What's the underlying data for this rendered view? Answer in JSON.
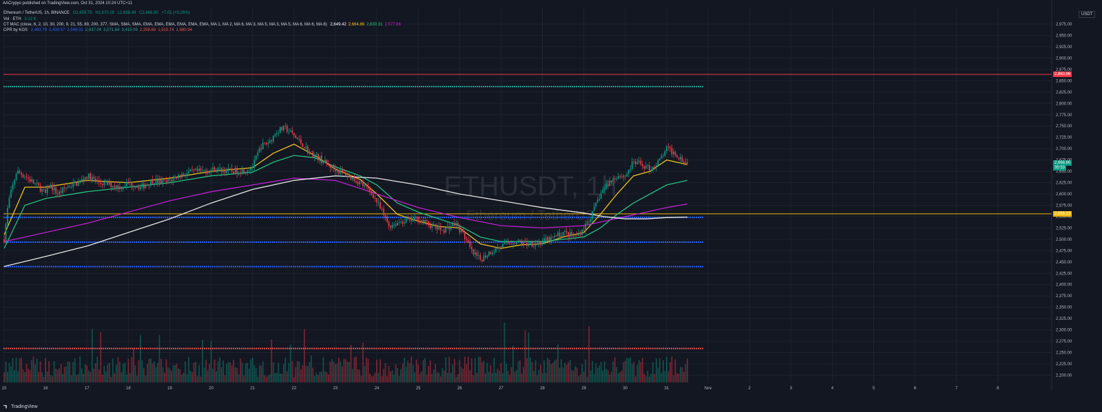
{
  "header": {
    "published": "AACrypyo published on TradingView.com, Oct 31, 2024 10:24 UTC+11",
    "symbol_line": "Ethereum / TetherUS, 1h, BINANCE",
    "ohlc": {
      "o": "O2,659.79",
      "h": "H2,670.28",
      "l": "L2,658.49",
      "c": "C2,668.80",
      "chg": "+7.01 (+0.26%)"
    },
    "vol_label": "Vol · ETH",
    "vol_value": "3.12 K",
    "ma_label": "CT MAC (close, 6, 2, 10, 30, 200, 9, 21, 55, 89, 200, 377, SMA, SMA, SMA, EMA, EMA, EMA, EMA, EMA, EMA, MA 1, MA 2, MA 6, MA 3, MA 5, MA 3, MA 5, MA 6, MA 6, MA 8)",
    "ma_values": [
      {
        "text": "2,649.42",
        "color": "#ffffff"
      },
      {
        "text": "2,664.86",
        "color": "#f2c31c"
      },
      {
        "text": "2,630.31",
        "color": "#26c281"
      },
      {
        "text": "2,577.66",
        "color": "#c020d0"
      }
    ],
    "cpr_label": "CPR by KGS",
    "cpr_values": [
      {
        "text": "2,493.79",
        "color": "#2962ff"
      },
      {
        "text": "2,439.57",
        "color": "#2962ff"
      },
      {
        "text": "2,548.31",
        "color": "#2962ff"
      },
      {
        "text": "2,837.04",
        "color": "#26a69a"
      },
      {
        "text": "3,071.84",
        "color": "#26a69a"
      },
      {
        "text": "3,415.09",
        "color": "#26a69a"
      },
      {
        "text": "2,258.88",
        "color": "#ef5350"
      },
      {
        "text": "1,915.74",
        "color": "#ef5350"
      },
      {
        "text": "1,680.94",
        "color": "#ef5350"
      }
    ]
  },
  "watermark": {
    "main": "ETHUSDT, 1h",
    "sub": "Ethereum / TetherUS"
  },
  "currency": "USDT",
  "price_tags": [
    {
      "text": "2,863.96",
      "price": 2863.96,
      "color": "#f23645"
    },
    {
      "text": "2,668.80",
      "price": 2668.8,
      "color": "#089981"
    },
    {
      "text": "35:53",
      "price": 2657,
      "color": "#089981"
    },
    {
      "text": "2,556.23",
      "price": 2556.23,
      "color": "#f0b90b"
    }
  ],
  "footer": {
    "brand": "TradingView"
  },
  "chart_data": {
    "type": "candlestick",
    "ylim": [
      2184,
      3010
    ],
    "y_ticks": [
      "2,975.00",
      "2,950.00",
      "2,925.00",
      "2,900.00",
      "2,875.00",
      "2,850.00",
      "2,825.00",
      "2,800.00",
      "2,775.00",
      "2,750.00",
      "2,725.00",
      "2,700.00",
      "2,675.00",
      "2,650.00",
      "2,625.00",
      "2,600.00",
      "2,575.00",
      "2,550.00",
      "2,525.00",
      "2,500.00",
      "2,475.00",
      "2,450.00",
      "2,425.00",
      "2,400.00",
      "2,375.00",
      "2,350.00",
      "2,325.00",
      "2,300.00",
      "2,275.00",
      "2,250.00",
      "2,225.00",
      "2,200.00"
    ],
    "x_ticks": [
      "15",
      "16",
      "17",
      "18",
      "19",
      "20",
      "21",
      "22",
      "23",
      "24",
      "25",
      "26",
      "27",
      "28",
      "29",
      "30",
      "31",
      "Nov",
      "2",
      "3",
      "4",
      "5",
      "6",
      "7",
      "8"
    ],
    "x_tick_days": [
      15,
      16,
      17,
      18,
      19,
      20,
      21,
      22,
      23,
      24,
      25,
      26,
      27,
      28,
      29,
      30,
      31,
      32,
      33,
      34,
      35,
      36,
      37,
      38,
      39
    ],
    "x_range_days": [
      14.95,
      40.3
    ],
    "last_candle_day": 31.5,
    "horizontal_levels": [
      {
        "price": 2863.96,
        "color": "#f23645",
        "style": "solid"
      },
      {
        "price": 2837.04,
        "color": "#26a69a",
        "style": "dotted"
      },
      {
        "price": 2556.23,
        "color": "#f0b90b",
        "style": "solid"
      },
      {
        "price": 2548.31,
        "color": "#2962ff",
        "style": "dotted"
      },
      {
        "price": 2493.79,
        "color": "#2962ff",
        "style": "dotted"
      },
      {
        "price": 2439.57,
        "color": "#2962ff",
        "style": "dotted"
      },
      {
        "price": 2258.88,
        "color": "#ef5350",
        "style": "dotted"
      }
    ],
    "price_path": [
      [
        15.0,
        2500
      ],
      [
        15.1,
        2580
      ],
      [
        15.3,
        2650
      ],
      [
        15.5,
        2640
      ],
      [
        15.7,
        2625
      ],
      [
        15.9,
        2610
      ],
      [
        16.0,
        2600
      ],
      [
        16.1,
        2620
      ],
      [
        16.3,
        2600
      ],
      [
        16.5,
        2615
      ],
      [
        16.8,
        2625
      ],
      [
        17.0,
        2640
      ],
      [
        17.3,
        2625
      ],
      [
        17.6,
        2620
      ],
      [
        17.8,
        2615
      ],
      [
        18.0,
        2625
      ],
      [
        18.3,
        2615
      ],
      [
        18.6,
        2630
      ],
      [
        18.9,
        2625
      ],
      [
        19.2,
        2640
      ],
      [
        19.5,
        2648
      ],
      [
        19.8,
        2650
      ],
      [
        20.1,
        2655
      ],
      [
        20.5,
        2650
      ],
      [
        20.8,
        2652
      ],
      [
        21.0,
        2660
      ],
      [
        21.2,
        2705
      ],
      [
        21.4,
        2715
      ],
      [
        21.6,
        2740
      ],
      [
        21.8,
        2745
      ],
      [
        22.0,
        2728
      ],
      [
        22.2,
        2710
      ],
      [
        22.4,
        2690
      ],
      [
        22.6,
        2680
      ],
      [
        22.8,
        2665
      ],
      [
        23.0,
        2655
      ],
      [
        23.3,
        2640
      ],
      [
        23.6,
        2625
      ],
      [
        23.9,
        2600
      ],
      [
        24.1,
        2565
      ],
      [
        24.3,
        2530
      ],
      [
        24.6,
        2540
      ],
      [
        25.0,
        2545
      ],
      [
        25.3,
        2530
      ],
      [
        25.6,
        2520
      ],
      [
        25.9,
        2535
      ],
      [
        26.1,
        2510
      ],
      [
        26.3,
        2470
      ],
      [
        26.5,
        2455
      ],
      [
        26.7,
        2470
      ],
      [
        27.0,
        2485
      ],
      [
        27.3,
        2495
      ],
      [
        27.6,
        2490
      ],
      [
        27.9,
        2492
      ],
      [
        28.2,
        2500
      ],
      [
        28.5,
        2515
      ],
      [
        28.8,
        2505
      ],
      [
        29.0,
        2525
      ],
      [
        29.2,
        2555
      ],
      [
        29.4,
        2600
      ],
      [
        29.6,
        2625
      ],
      [
        29.8,
        2640
      ],
      [
        30.0,
        2640
      ],
      [
        30.2,
        2670
      ],
      [
        30.4,
        2665
      ],
      [
        30.6,
        2655
      ],
      [
        30.8,
        2670
      ],
      [
        31.0,
        2700
      ],
      [
        31.2,
        2690
      ],
      [
        31.4,
        2675
      ],
      [
        31.5,
        2668
      ]
    ],
    "lows_note": "approximate",
    "ma_lines": [
      {
        "name": "",
        "color": "#f2c31c",
        "points": [
          [
            15.0,
            2510
          ],
          [
            15.5,
            2615
          ],
          [
            16.0,
            2615
          ],
          [
            17.0,
            2630
          ],
          [
            18.0,
            2625
          ],
          [
            19.0,
            2635
          ],
          [
            20.0,
            2650
          ],
          [
            21.0,
            2658
          ],
          [
            21.5,
            2690
          ],
          [
            22.0,
            2710
          ],
          [
            22.5,
            2685
          ],
          [
            23.0,
            2655
          ],
          [
            23.6,
            2632
          ],
          [
            24.0,
            2600
          ],
          [
            24.5,
            2555
          ],
          [
            25.0,
            2540
          ],
          [
            25.5,
            2528
          ],
          [
            26.0,
            2525
          ],
          [
            26.5,
            2490
          ],
          [
            27.0,
            2480
          ],
          [
            27.5,
            2488
          ],
          [
            28.0,
            2490
          ],
          [
            28.5,
            2505
          ],
          [
            29.0,
            2515
          ],
          [
            29.4,
            2555
          ],
          [
            29.8,
            2600
          ],
          [
            30.2,
            2640
          ],
          [
            30.6,
            2650
          ],
          [
            31.0,
            2675
          ],
          [
            31.5,
            2665
          ]
        ]
      },
      {
        "name": "",
        "color": "#26c281",
        "points": [
          [
            15.0,
            2480
          ],
          [
            15.5,
            2575
          ],
          [
            16.0,
            2590
          ],
          [
            17.0,
            2605
          ],
          [
            18.0,
            2615
          ],
          [
            19.0,
            2625
          ],
          [
            20.0,
            2640
          ],
          [
            21.0,
            2648
          ],
          [
            21.5,
            2670
          ],
          [
            22.0,
            2685
          ],
          [
            22.5,
            2680
          ],
          [
            23.0,
            2660
          ],
          [
            23.6,
            2640
          ],
          [
            24.0,
            2620
          ],
          [
            24.5,
            2580
          ],
          [
            25.0,
            2560
          ],
          [
            25.5,
            2545
          ],
          [
            26.0,
            2530
          ],
          [
            26.5,
            2505
          ],
          [
            27.0,
            2495
          ],
          [
            27.5,
            2495
          ],
          [
            28.0,
            2495
          ],
          [
            28.5,
            2500
          ],
          [
            29.0,
            2505
          ],
          [
            29.4,
            2525
          ],
          [
            29.8,
            2555
          ],
          [
            30.2,
            2580
          ],
          [
            30.6,
            2600
          ],
          [
            31.0,
            2620
          ],
          [
            31.5,
            2630
          ]
        ]
      },
      {
        "name": "",
        "color": "#c020d0",
        "points": [
          [
            15.0,
            2495
          ],
          [
            16.0,
            2515
          ],
          [
            17.0,
            2535
          ],
          [
            18.0,
            2560
          ],
          [
            19.0,
            2585
          ],
          [
            20.0,
            2605
          ],
          [
            21.0,
            2620
          ],
          [
            22.0,
            2635
          ],
          [
            23.0,
            2630
          ],
          [
            24.0,
            2600
          ],
          [
            25.0,
            2570
          ],
          [
            26.0,
            2548
          ],
          [
            27.0,
            2530
          ],
          [
            28.0,
            2525
          ],
          [
            29.0,
            2530
          ],
          [
            29.5,
            2540
          ],
          [
            30.0,
            2550
          ],
          [
            30.5,
            2560
          ],
          [
            31.0,
            2570
          ],
          [
            31.5,
            2578
          ]
        ]
      },
      {
        "name": "",
        "color": "#e8e8e8",
        "points": [
          [
            15.0,
            2440
          ],
          [
            16.0,
            2462
          ],
          [
            17.0,
            2485
          ],
          [
            18.0,
            2515
          ],
          [
            19.0,
            2545
          ],
          [
            20.0,
            2580
          ],
          [
            21.0,
            2610
          ],
          [
            22.0,
            2630
          ],
          [
            23.0,
            2640
          ],
          [
            24.0,
            2635
          ],
          [
            25.0,
            2620
          ],
          [
            26.0,
            2600
          ],
          [
            27.0,
            2585
          ],
          [
            28.0,
            2570
          ],
          [
            29.0,
            2558
          ],
          [
            29.5,
            2550
          ],
          [
            30.0,
            2545
          ],
          [
            30.5,
            2545
          ],
          [
            31.0,
            2548
          ],
          [
            31.5,
            2549
          ]
        ]
      }
    ]
  }
}
